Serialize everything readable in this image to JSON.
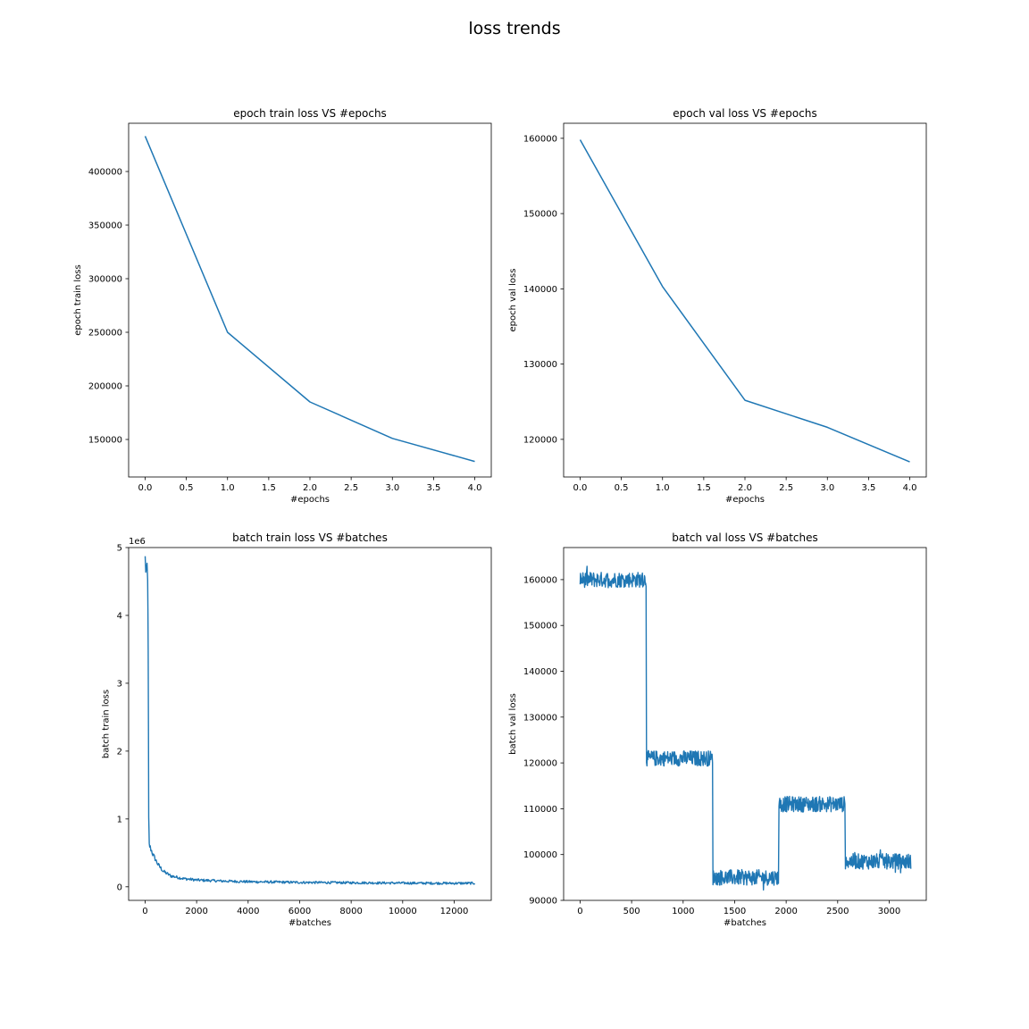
{
  "figure": {
    "title": "loss trends"
  },
  "chart_data": [
    {
      "type": "line",
      "title": "epoch train loss VS #epochs",
      "xlabel": "#epochs",
      "ylabel": "epoch train loss",
      "xlim": [
        -0.2,
        4.2
      ],
      "ylim": [
        115000,
        445000
      ],
      "xticks": [
        0,
        0.5,
        1,
        1.5,
        2,
        2.5,
        3,
        3.5,
        4
      ],
      "xtick_labels": [
        "0.0",
        "0.5",
        "1.0",
        "1.5",
        "2.0",
        "2.5",
        "3.0",
        "3.5",
        "4.0"
      ],
      "yticks": [
        150000,
        200000,
        250000,
        300000,
        350000,
        400000
      ],
      "ytick_labels": [
        "150000",
        "200000",
        "250000",
        "300000",
        "350000",
        "400000"
      ],
      "x": [
        0,
        1,
        2,
        3,
        4
      ],
      "series": [
        {
          "values": [
            433000,
            250000,
            185000,
            151000,
            129500
          ]
        }
      ],
      "color": "#1f77b4",
      "grid": false
    },
    {
      "type": "line",
      "title": "epoch val loss VS #epochs",
      "xlabel": "#epochs",
      "ylabel": "epoch val loss",
      "xlim": [
        -0.2,
        4.2
      ],
      "ylim": [
        115000,
        162000
      ],
      "xticks": [
        0,
        0.5,
        1,
        1.5,
        2,
        2.5,
        3,
        3.5,
        4
      ],
      "xtick_labels": [
        "0.0",
        "0.5",
        "1.0",
        "1.5",
        "2.0",
        "2.5",
        "3.0",
        "3.5",
        "4.0"
      ],
      "yticks": [
        120000,
        130000,
        140000,
        150000,
        160000
      ],
      "ytick_labels": [
        "120000",
        "130000",
        "140000",
        "150000",
        "160000"
      ],
      "x": [
        0,
        1,
        2,
        3,
        4
      ],
      "series": [
        {
          "values": [
            159800,
            140300,
            125200,
            121600,
            117000
          ]
        }
      ],
      "color": "#1f77b4",
      "grid": false
    },
    {
      "type": "line",
      "title": "batch train loss VS #batches",
      "xlabel": "#batches",
      "ylabel": "batch train loss",
      "y_offset_label": "1e6",
      "xlim": [
        -640,
        13440
      ],
      "ylim": [
        -200000,
        5000000
      ],
      "xticks": [
        0,
        2000,
        4000,
        6000,
        8000,
        10000,
        12000
      ],
      "xtick_labels": [
        "0",
        "2000",
        "4000",
        "6000",
        "8000",
        "10000",
        "12000"
      ],
      "yticks": [
        0,
        1000000,
        2000000,
        3000000,
        4000000,
        5000000
      ],
      "ytick_labels": [
        "0",
        "1",
        "2",
        "3",
        "4",
        "5"
      ],
      "x": [
        0,
        50,
        100,
        120,
        140,
        160,
        200,
        300,
        500,
        700,
        1000,
        1500,
        2000,
        3000,
        4000,
        6000,
        8000,
        10000,
        12000,
        12800
      ],
      "series": [
        {
          "values": [
            4800000,
            4650000,
            4450000,
            3600000,
            1000000,
            620000,
            580000,
            480000,
            330000,
            230000,
            160000,
            120000,
            100000,
            85000,
            75000,
            65000,
            60000,
            55000,
            52000,
            52000
          ]
        }
      ],
      "color": "#1f77b4",
      "grid": false
    },
    {
      "type": "line",
      "title": "batch val loss VS #batches",
      "xlabel": "#batches",
      "ylabel": "batch val loss",
      "xlim": [
        -160,
        3360
      ],
      "ylim": [
        90000,
        167000
      ],
      "xticks": [
        0,
        500,
        1000,
        1500,
        2000,
        2500,
        3000
      ],
      "xtick_labels": [
        "0",
        "500",
        "1000",
        "1500",
        "2000",
        "2500",
        "3000"
      ],
      "yticks": [
        90000,
        100000,
        110000,
        120000,
        130000,
        140000,
        150000,
        160000
      ],
      "ytick_labels": [
        "90000",
        "100000",
        "110000",
        "120000",
        "130000",
        "140000",
        "150000",
        "160000"
      ],
      "x": [
        0,
        640,
        645,
        1285,
        1290,
        1925,
        1930,
        2570,
        2575,
        3210
      ],
      "series": [
        {
          "values": [
            160000,
            160000,
            121000,
            121000,
            95000,
            95000,
            111000,
            111000,
            98500,
            98500
          ]
        }
      ],
      "color": "#1f77b4",
      "grid": false
    }
  ]
}
